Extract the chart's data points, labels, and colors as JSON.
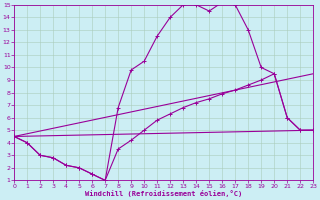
{
  "bg_color": "#cceef4",
  "line_color": "#990099",
  "grid_color": "#aaccbb",
  "xlabel": "Windchill (Refroidissement éolien,°C)",
  "xlim": [
    0,
    23
  ],
  "ylim": [
    1,
    15
  ],
  "xticks": [
    0,
    1,
    2,
    3,
    4,
    5,
    6,
    7,
    8,
    9,
    10,
    11,
    12,
    13,
    14,
    15,
    16,
    17,
    18,
    19,
    20,
    21,
    22,
    23
  ],
  "yticks": [
    1,
    2,
    3,
    4,
    5,
    6,
    7,
    8,
    9,
    10,
    11,
    12,
    13,
    14,
    15
  ],
  "curve1_x": [
    0,
    1,
    2,
    3,
    4,
    5,
    6,
    7,
    8,
    9,
    10,
    11,
    12,
    13,
    14,
    15,
    16,
    17,
    18,
    19,
    20,
    21,
    22,
    23
  ],
  "curve1_y": [
    4.5,
    4.0,
    3.0,
    2.8,
    2.2,
    2.0,
    1.5,
    1.0,
    6.8,
    9.8,
    10.5,
    12.5,
    14.0,
    15.0,
    15.0,
    14.5,
    15.2,
    15.0,
    13.0,
    10.0,
    9.5,
    6.0,
    5.0,
    5.0
  ],
  "curve2_x": [
    0,
    1,
    2,
    3,
    4,
    5,
    6,
    7,
    8,
    9,
    10,
    11,
    12,
    13,
    14,
    15,
    16,
    17,
    18,
    19,
    20,
    21,
    22,
    23
  ],
  "curve2_y": [
    4.5,
    4.0,
    3.0,
    2.8,
    2.2,
    2.0,
    1.5,
    1.0,
    3.5,
    4.2,
    5.0,
    5.8,
    6.3,
    6.8,
    7.2,
    7.5,
    7.9,
    8.2,
    8.6,
    9.0,
    9.5,
    6.0,
    5.0,
    5.0
  ],
  "curve3_x": [
    0,
    23
  ],
  "curve3_y": [
    4.5,
    9.5
  ],
  "curve4_x": [
    0,
    23
  ],
  "curve4_y": [
    4.5,
    5.0
  ]
}
